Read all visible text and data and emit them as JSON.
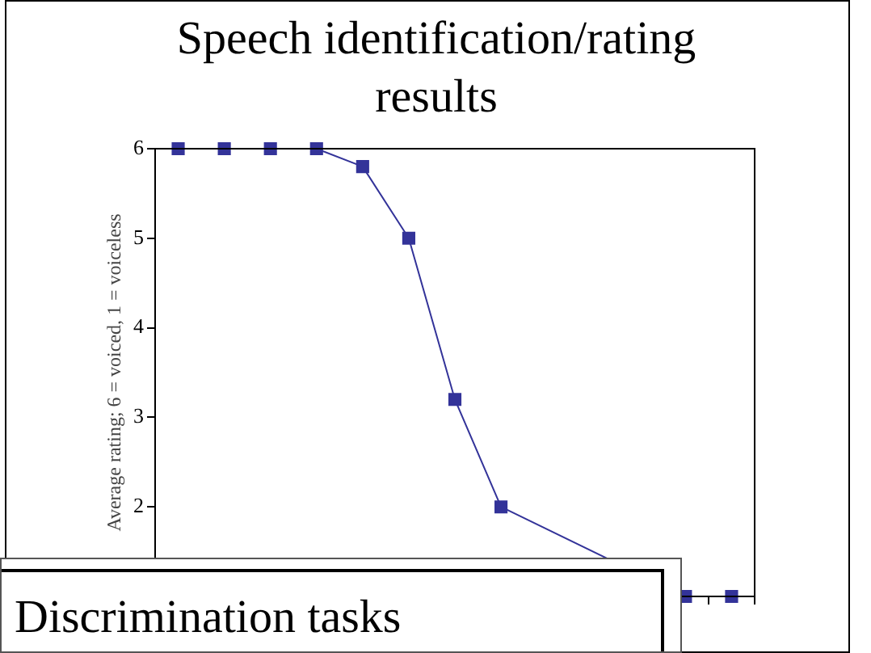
{
  "chart_data": {
    "type": "line",
    "title": "Speech identification/rating results",
    "ylabel": "Average rating; 6 = voiced, 1 = voiceless",
    "categories": [
      null,
      null,
      null,
      null,
      null,
      null,
      null,
      null,
      null,
      null,
      null,
      null,
      null
    ],
    "series": [
      {
        "color": "#333399",
        "values": [
          6,
          6,
          6,
          6,
          5.8,
          5,
          3.2,
          2,
          null,
          null,
          null,
          1,
          1
        ]
      }
    ],
    "ylim": [
      1,
      6
    ],
    "yticks": [
      {
        "value": 1,
        "label": null
      },
      2,
      3,
      4,
      5,
      6
    ],
    "grid": false,
    "legend": false,
    "marker": "square",
    "line_style": "solid",
    "tick_labels": "y",
    "annotations": [
      "Discrimination tasks"
    ]
  }
}
